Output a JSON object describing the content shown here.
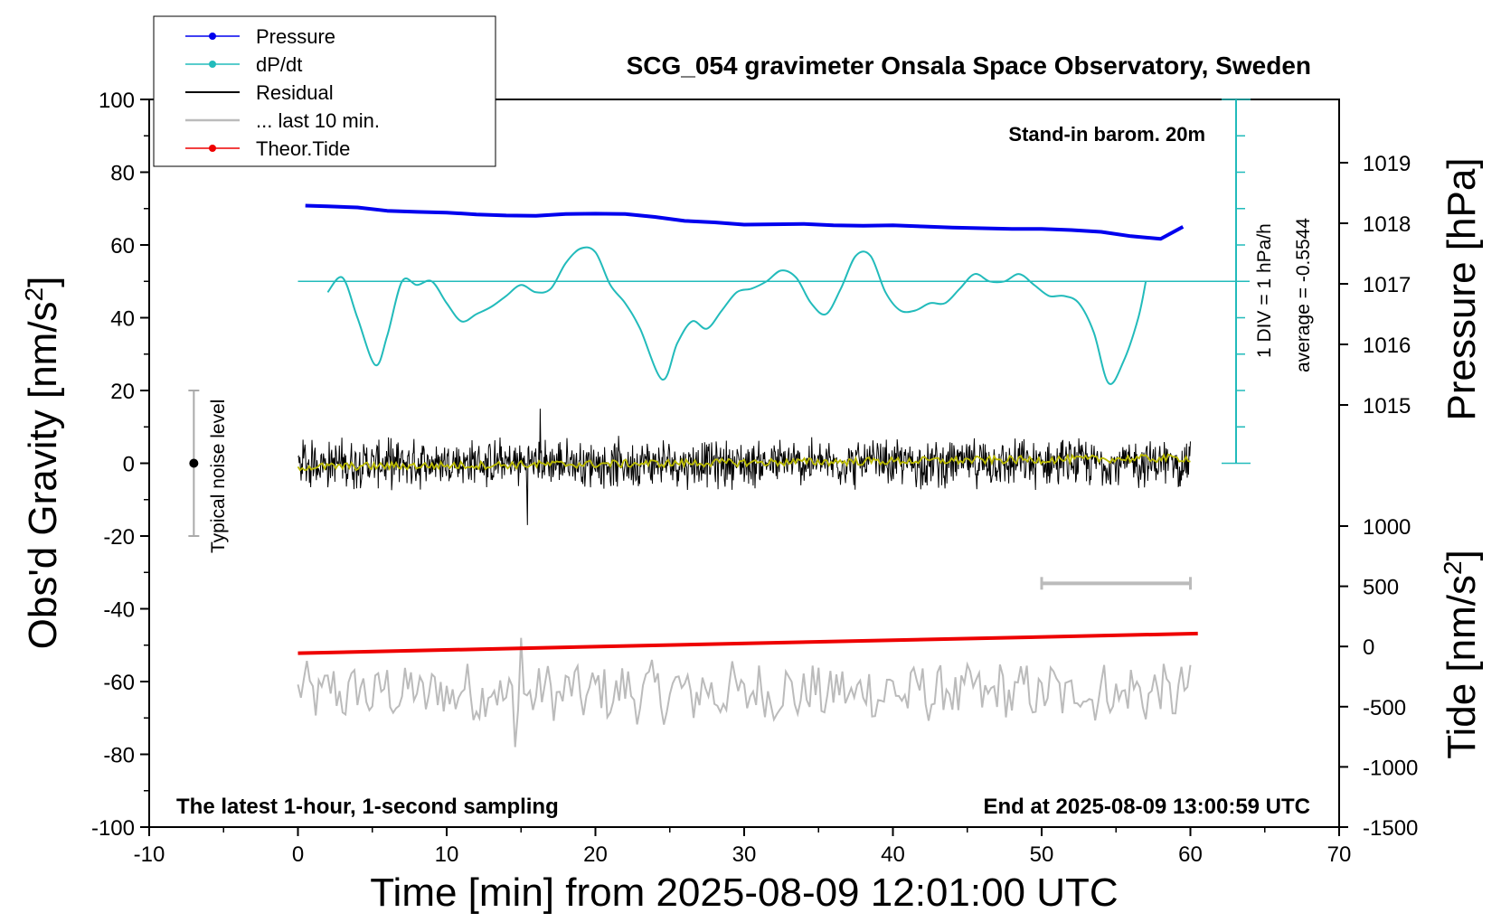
{
  "chart_data": {
    "type": "line",
    "title": "SCG_054 gravimeter Onsala Space Observatory, Sweden",
    "subtitle_left": "The latest 1-hour, 1-second sampling",
    "subtitle_right": "End at 2025-08-09 13:00:59 UTC",
    "barometer_note": "Stand-in barom. 20m",
    "dpdt_scale_label": "1 DIV = 1 hPa/h",
    "dpdt_average_label": "average = -0.5544",
    "noise_label": "Typical noise level",
    "xlabel": "Time [min] from 2025-08-09 12:01:00 UTC",
    "ylabel_left": "Obs'd Gravity [nm/s",
    "ylabel_left_sup": "2",
    "ylabel_left_end": "]",
    "ylabel_pressure": "Pressure [hPa]",
    "ylabel_tide": "Tide [nm/s",
    "ylabel_tide_sup": "2",
    "ylabel_tide_end": "]",
    "xlim": [
      -10,
      70
    ],
    "ylim": [
      -100,
      100
    ],
    "x_ticks": [
      "-10",
      "0",
      "10",
      "20",
      "30",
      "40",
      "50",
      "60",
      "70"
    ],
    "y_ticks": [
      "100",
      "80",
      "60",
      "40",
      "20",
      "0",
      "-20",
      "-40",
      "-60",
      "-80",
      "-100"
    ],
    "pressure_ticks": [
      "1019",
      "1018",
      "1017",
      "1016",
      "1015"
    ],
    "tide_ticks": [
      "1000",
      "500",
      "0",
      "-500",
      "-1000",
      "-1500"
    ],
    "legend": [
      "Pressure",
      "dP/dt",
      "Residual",
      "... last 10 min.",
      "Theor.Tide"
    ],
    "colors": {
      "pressure": "#0000ee",
      "dpdt": "#22bbbb",
      "residual": "#000000",
      "last10": "#bbbbbb",
      "residual_smooth": "#bbbb00",
      "tide": "#ee0000",
      "noise": "#aaaaaa"
    },
    "series": [
      {
        "name": "Pressure",
        "x": [
          0.5,
          2,
          4,
          6,
          8,
          10,
          12,
          14,
          16,
          18,
          20,
          22,
          24,
          26,
          28,
          30,
          32,
          34,
          36,
          38,
          40,
          42,
          44,
          46,
          48,
          50,
          52,
          54,
          56,
          58,
          59.5
        ],
        "y": [
          70.8,
          70.6,
          70.3,
          69.4,
          69.1,
          68.9,
          68.4,
          68.1,
          68.0,
          68.5,
          68.6,
          68.5,
          67.7,
          66.6,
          66.2,
          65.6,
          65.7,
          65.8,
          65.4,
          65.3,
          65.4,
          65.1,
          64.8,
          64.6,
          64.4,
          64.4,
          64.1,
          63.6,
          62.4,
          61.7,
          65.0
        ]
      },
      {
        "name": "dP/dt",
        "x": [
          2,
          3,
          4,
          5.2,
          6,
          7,
          8,
          9,
          10,
          11,
          12,
          13,
          14,
          15,
          16,
          17,
          18,
          19,
          20,
          21,
          22,
          23,
          24.5,
          25.5,
          26.5,
          27.5,
          28.5,
          29.5,
          30.5,
          31.5,
          32.5,
          33.5,
          34.5,
          35.5,
          36.5,
          37.5,
          38.5,
          39.5,
          40.5,
          41.5,
          42.5,
          43.5,
          44.5,
          45.5,
          46.5,
          47.5,
          48.5,
          49.5,
          50.5,
          51.5,
          52.5,
          53.5,
          54.5,
          55.5,
          56.5,
          57.0
        ],
        "y": [
          47,
          51,
          40,
          27,
          35,
          50,
          49,
          50,
          44,
          39,
          41,
          43,
          46,
          49,
          47,
          48,
          55,
          59,
          58,
          49,
          44,
          37,
          23,
          33,
          39,
          37,
          42,
          47,
          48,
          50,
          53,
          51,
          44,
          41,
          48,
          57,
          57,
          47,
          42,
          42,
          44,
          44,
          48,
          52,
          50,
          50,
          52,
          49,
          46,
          46,
          44,
          36,
          22,
          28,
          40,
          50
        ]
      },
      {
        "name": "Theor.Tide",
        "x": [
          0,
          60.5
        ],
        "y": [
          -52.2,
          -46.8
        ]
      },
      {
        "name": "Residual",
        "x_range": [
          0,
          60
        ],
        "center_y": 0,
        "amplitude": 6,
        "extremes": [
          15,
          -17
        ]
      },
      {
        "name": "... last 10 min.",
        "x_range": [
          0,
          60
        ],
        "center_y": -63,
        "extremes": [
          -48,
          -78
        ]
      }
    ],
    "dpdt_reference_y": 50,
    "noise_bar": {
      "x": -7,
      "y": [
        20,
        -20
      ],
      "center": 0
    },
    "last10_bar": {
      "x": [
        50,
        60
      ],
      "y": -33
    },
    "legend_placement": "top-left"
  }
}
